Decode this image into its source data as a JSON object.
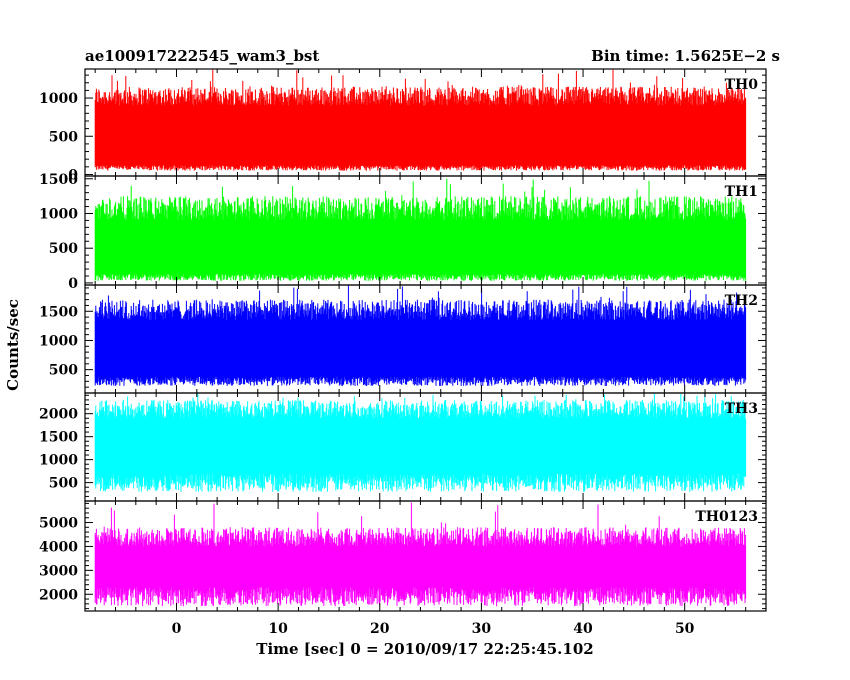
{
  "chart_data": {
    "type": "line",
    "title": "ae100917222545_wam3_bst",
    "bin_time_label": "Bin time: 1.5625E−2 s",
    "xlabel": "Time [sec] 0 = 2010/09/17 22:25:45.102",
    "ylabel": "Counts/sec",
    "xlim": [
      -9,
      58
    ],
    "x_ticks": [
      0,
      10,
      20,
      30,
      40,
      50
    ],
    "x_tick_labels": [
      "0",
      "10",
      "20",
      "30",
      "40",
      "50"
    ],
    "data_x_range": [
      -8,
      56
    ],
    "grid": false,
    "panels": [
      {
        "name": "TH0",
        "color": "#ff0000",
        "ylim": [
          -20,
          1380
        ],
        "ticks": [
          0,
          500,
          1000
        ],
        "tick_labels": [
          "0",
          "500",
          "1000"
        ],
        "base": [
          50,
          120
        ],
        "upper": [
          900,
          1150
        ],
        "spike": 1380
      },
      {
        "name": "TH1",
        "color": "#00ff00",
        "ylim": [
          -30,
          1540
        ],
        "ticks": [
          0,
          500,
          1000,
          1500
        ],
        "tick_labels": [
          "0",
          "500",
          "1000",
          "1500"
        ],
        "base": [
          30,
          130
        ],
        "upper": [
          900,
          1250
        ],
        "spike": 1540
      },
      {
        "name": "TH2",
        "color": "#0000ff",
        "ylim": [
          100,
          1950
        ],
        "ticks": [
          500,
          1000,
          1500
        ],
        "tick_labels": [
          "500",
          "1000",
          "1500"
        ],
        "base": [
          220,
          380
        ],
        "upper": [
          1350,
          1700
        ],
        "spike": 1950
      },
      {
        "name": "TH3",
        "color": "#00ffff",
        "ylim": [
          100,
          2450
        ],
        "ticks": [
          500,
          1000,
          1500,
          2000
        ],
        "tick_labels": [
          "500",
          "1000",
          "1500",
          "2000"
        ],
        "base": [
          300,
          700
        ],
        "upper": [
          1900,
          2300
        ],
        "spike": 2450
      },
      {
        "name": "TH0123",
        "color": "#ff00ff",
        "ylim": [
          1300,
          5900
        ],
        "ticks": [
          2000,
          3000,
          4000,
          5000
        ],
        "tick_labels": [
          "2000",
          "3000",
          "4000",
          "5000"
        ],
        "base": [
          1500,
          2300
        ],
        "upper": [
          4000,
          4800
        ],
        "spike": 5900
      }
    ]
  }
}
